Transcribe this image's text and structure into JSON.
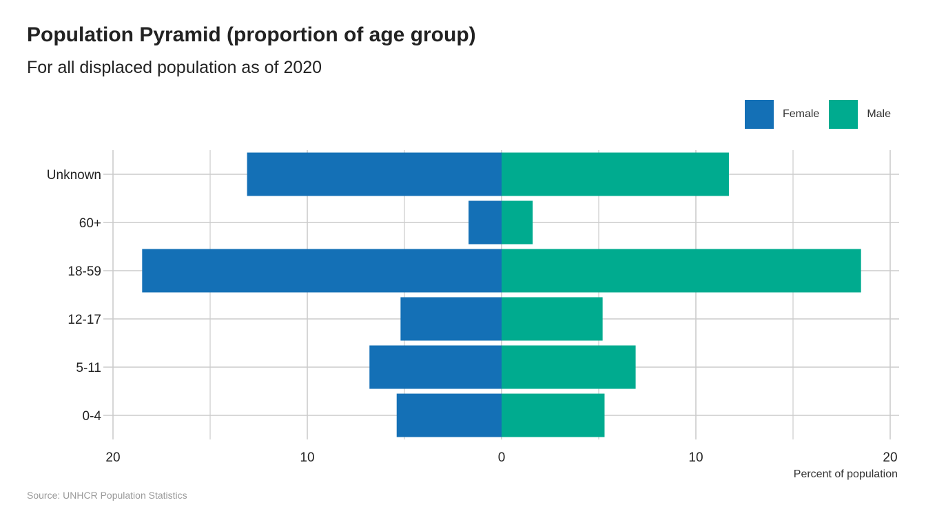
{
  "title": "Population Pyramid (proportion of age group)",
  "subtitle": "For all displaced population as of 2020",
  "caption": "Source: UNHCR Population Statistics",
  "colors": {
    "female": "#1470b6",
    "male": "#00ab8f",
    "grid": "#cccccc"
  },
  "legend": [
    {
      "name": "Female",
      "color": "#1470b6"
    },
    {
      "name": "Male",
      "color": "#00ab8f"
    }
  ],
  "chart_data": {
    "type": "bar",
    "orientation": "horizontal-diverging",
    "categories": [
      "0-4",
      "5-11",
      "12-17",
      "18-59",
      "60+",
      "Unknown"
    ],
    "series": [
      {
        "name": "Female",
        "values": [
          5.4,
          6.8,
          5.2,
          18.5,
          1.7,
          13.1
        ]
      },
      {
        "name": "Male",
        "values": [
          5.3,
          6.9,
          5.2,
          18.5,
          1.6,
          11.7
        ]
      }
    ],
    "xlabel": "Percent of population",
    "ylabel": "",
    "xlim": [
      -20,
      20
    ],
    "xticks": [
      -20,
      -10,
      0,
      10,
      20
    ],
    "xtick_labels": [
      "20",
      "10",
      "0",
      "10",
      "20"
    ],
    "grid": true,
    "legend_position": "top-right"
  }
}
